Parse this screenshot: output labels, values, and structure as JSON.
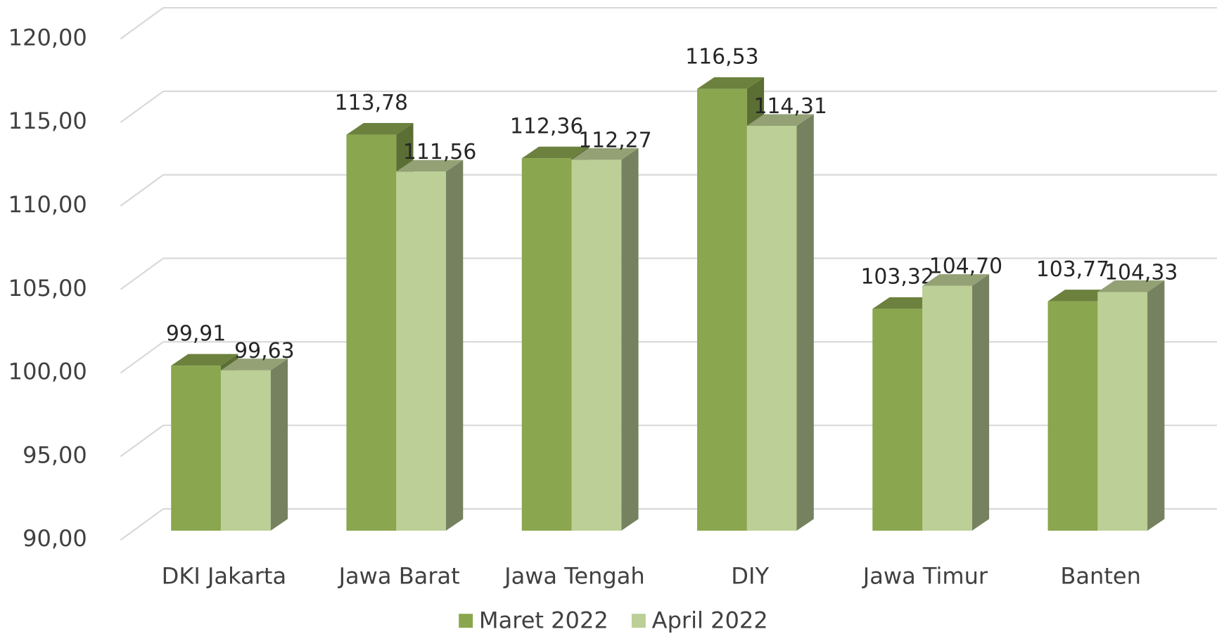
{
  "chart_data": {
    "type": "bar3d",
    "categories": [
      "DKI Jakarta",
      "Jawa Barat",
      "Jawa Tengah",
      "DIY",
      "Jawa Timur",
      "Banten"
    ],
    "series": [
      {
        "name": "Maret 2022",
        "color": "#8aa64e",
        "values": [
          99.91,
          113.78,
          112.36,
          116.53,
          103.32,
          103.77
        ],
        "value_labels": [
          "99,91",
          "113,78",
          "112,36",
          "116,53",
          "103,32",
          "103,77"
        ]
      },
      {
        "name": "April 2022",
        "color": "#bccf96",
        "values": [
          99.63,
          111.56,
          112.27,
          114.31,
          104.7,
          104.33
        ],
        "value_labels": [
          "99,63",
          "111,56",
          "112,27",
          "114,31",
          "104,70",
          "104,33"
        ]
      }
    ],
    "ylim": [
      90,
      120
    ],
    "yticks": [
      {
        "value": 90,
        "label": "90,00"
      },
      {
        "value": 95,
        "label": "95,00"
      },
      {
        "value": 100,
        "label": "100,00"
      },
      {
        "value": 105,
        "label": "105,00"
      },
      {
        "value": 110,
        "label": "110,00"
      },
      {
        "value": 115,
        "label": "115,00"
      },
      {
        "value": 120,
        "label": "120,00"
      }
    ],
    "grid": true,
    "legend": "bottom"
  }
}
